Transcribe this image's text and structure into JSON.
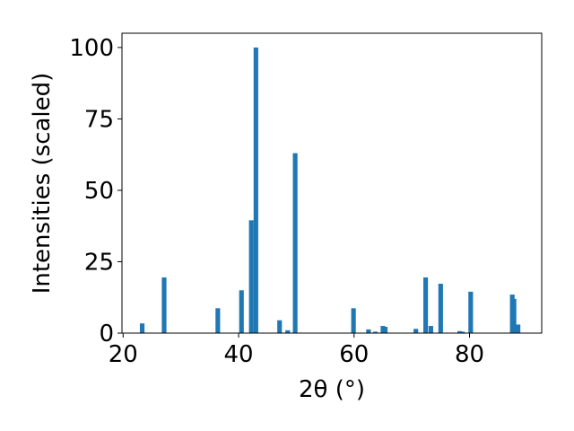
{
  "chart_data": {
    "type": "bar",
    "xlabel": "2θ (°)",
    "ylabel": "Intensities (scaled)",
    "x": [
      23.3,
      27.1,
      36.4,
      40.5,
      42.2,
      43.0,
      47.1,
      48.5,
      49.8,
      59.9,
      62.5,
      63.7,
      65.0,
      65.4,
      70.7,
      72.4,
      73.3,
      75.0,
      78.3,
      78.8,
      80.2,
      87.4,
      87.7,
      88.4
    ],
    "values": [
      3.4,
      19.5,
      8.7,
      15,
      39.5,
      100,
      4.5,
      1,
      63,
      8.7,
      1.3,
      0.5,
      2.5,
      2.2,
      1.5,
      19.5,
      2.5,
      17.3,
      0.7,
      0.5,
      14.5,
      13.5,
      12,
      3
    ],
    "color": "#1f77b4",
    "xlim": [
      19.8,
      92.5
    ],
    "xticks": [
      20,
      40,
      60,
      80
    ],
    "ylim": [
      0,
      105
    ],
    "yticks": [
      0,
      25,
      50,
      75,
      100
    ]
  }
}
